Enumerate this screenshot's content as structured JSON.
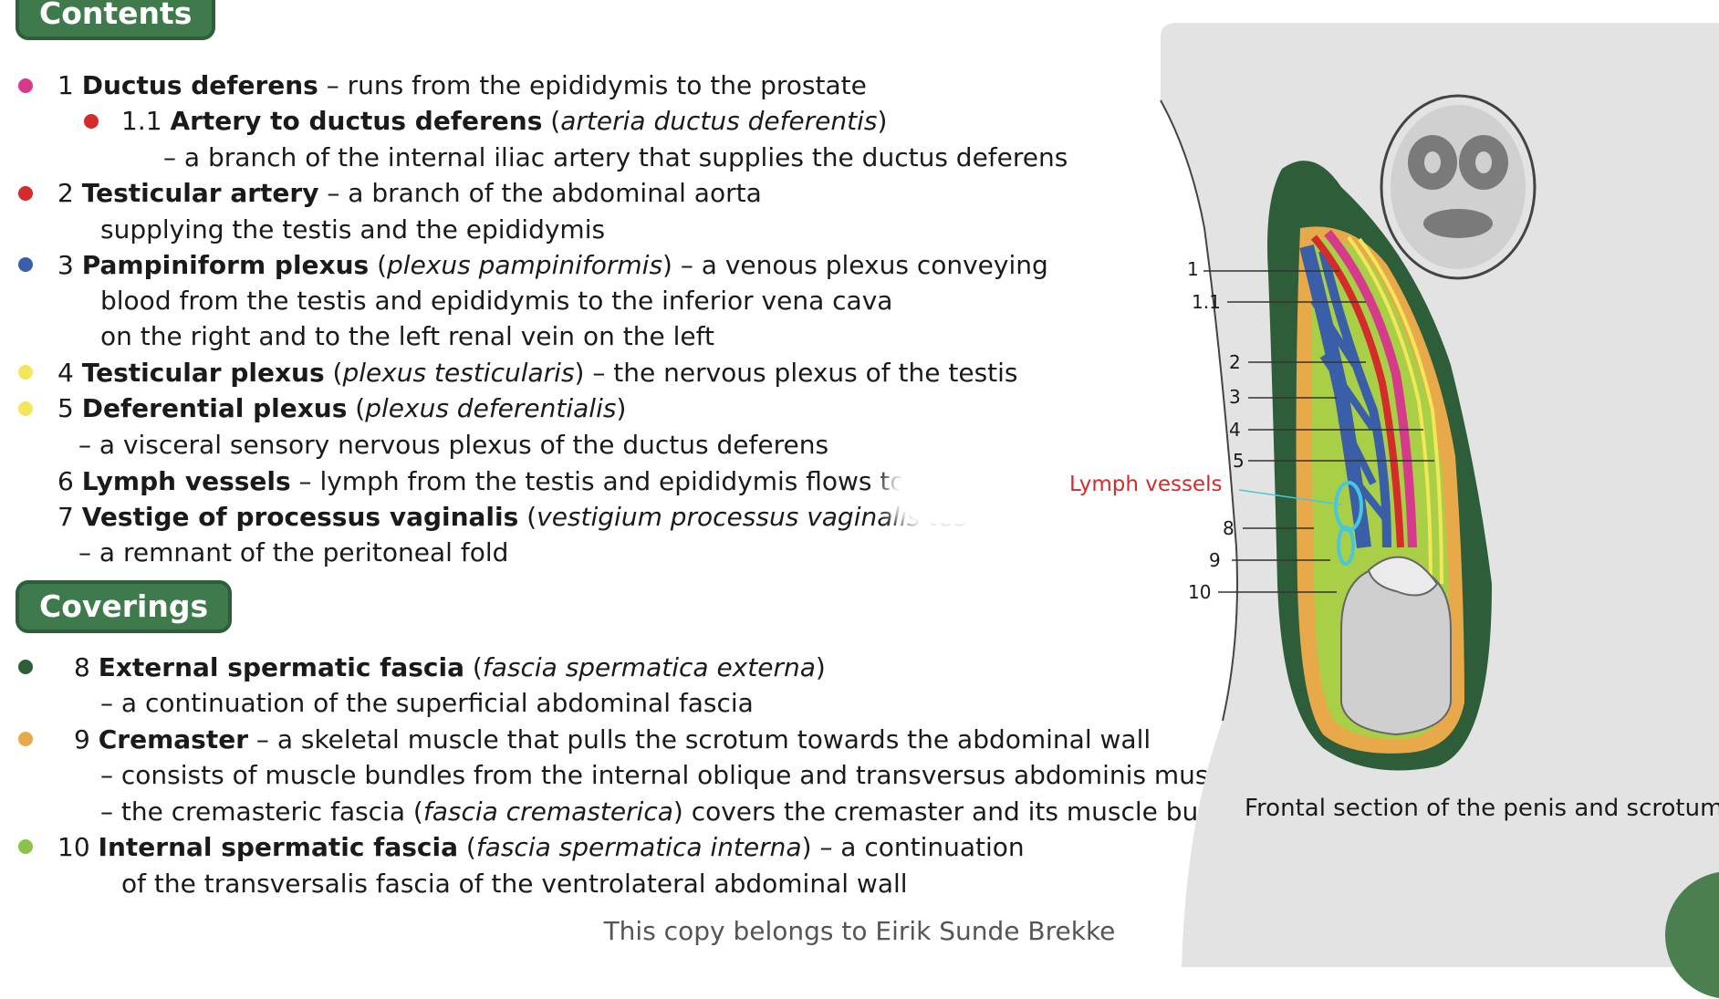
{
  "sections": {
    "contents_title": "Contents",
    "coverings_title": "Coverings"
  },
  "contents": {
    "item1": {
      "num": "1",
      "name": "Ductus deferens",
      "desc": " – runs from the epididymis to the prostate",
      "dot_color": "#d63a8a"
    },
    "item1_1": {
      "num": "1.1",
      "name": "Artery to ductus deferens",
      "open": " (",
      "latin": "arteria ductus deferentis",
      "close": ")",
      "dot_color": "#d42b2b"
    },
    "item1_1_desc": "– a branch of the internal iliac artery that supplies the ductus deferens",
    "item2": {
      "num": "2",
      "name": "Testicular artery",
      "desc": " – a branch of the abdominal aorta",
      "dot_color": "#d42b2b"
    },
    "item2_desc": "supplying the testis and the epididymis",
    "item3": {
      "num": "3",
      "name": "Pampiniform plexus",
      "open": " (",
      "latin": "plexus pampiniformis",
      "close": ") – a venous plexus conveying",
      "dot_color": "#3a5fa8"
    },
    "item3_desc1": "blood from the testis and epididymis to the inferior vena cava",
    "item3_desc2": "on the right and to the left renal vein on the left",
    "item4": {
      "num": "4",
      "name": "Testicular plexus",
      "open": " (",
      "latin": "plexus testicularis",
      "close": ") – the nervous plexus of the testis",
      "dot_color": "#f2e65a"
    },
    "item5": {
      "num": "5",
      "name": "Deferential plexus",
      "open": " (",
      "latin": "plexus deferentialis",
      "close": ")",
      "dot_color": "#f2e65a"
    },
    "item5_desc": "– a visceral sensory nervous plexus of the ductus deferens",
    "item6": {
      "num": "6",
      "name": "Lymph vessels",
      "desc": " – lymph from the testis and epididymis flows to the lu"
    },
    "item7": {
      "num": "7",
      "name": "Vestige of processus vaginalis",
      "open": " (",
      "latin": "vestigium processus vaginalis tes"
    },
    "item7_desc": "– a remnant of the peritoneal fold"
  },
  "coverings": {
    "item8": {
      "num": "8",
      "name": "External spermatic fascia",
      "open": " (",
      "latin": "fascia spermatica externa",
      "close": ")",
      "dot_color": "#2e5e39"
    },
    "item8_desc": "– a continuation of the superficial abdominal fascia",
    "item9": {
      "num": "9",
      "name": "Cremaster",
      "desc": " – a skeletal muscle that pulls the scrotum towards the abdominal wall",
      "dot_color": "#e8a94a"
    },
    "item9_desc1": "– consists of muscle bundles from the internal oblique and transversus abdominis muscles",
    "item9_desc2_a": "– the cremasteric fascia (",
    "item9_desc2_latin": "fascia cremasterica",
    "item9_desc2_b": ") covers the cremaster and its muscle bundles",
    "item10": {
      "num": "10",
      "name": "Internal spermatic fascia",
      "open": " (",
      "latin": "fascia spermatica interna",
      "close": ") – a continuation",
      "dot_color": "#8bc34a"
    },
    "item10_desc": "of the transversalis fascia of the ventrolateral abdominal wall"
  },
  "figure": {
    "caption": "Frontal section of the penis and scrotum",
    "labels": [
      "1",
      "1.1",
      "2",
      "3",
      "4",
      "5",
      "8",
      "9",
      "10"
    ],
    "lymph_label": "Lymph vessels",
    "colors": {
      "background": "#e3e3e3",
      "external_fascia": "#2e5e39",
      "cremaster": "#e8a94a",
      "internal_fascia": "#a8cf45",
      "vein": "#3a5fa8",
      "artery": "#d42b2b",
      "ductus": "#d63a8a",
      "nerve": "#f2e65a",
      "lymph": "#4ac6dc",
      "lymph_label": "#d42b2b"
    }
  },
  "footer": "This copy belongs to Eirik Sunde Brekke"
}
